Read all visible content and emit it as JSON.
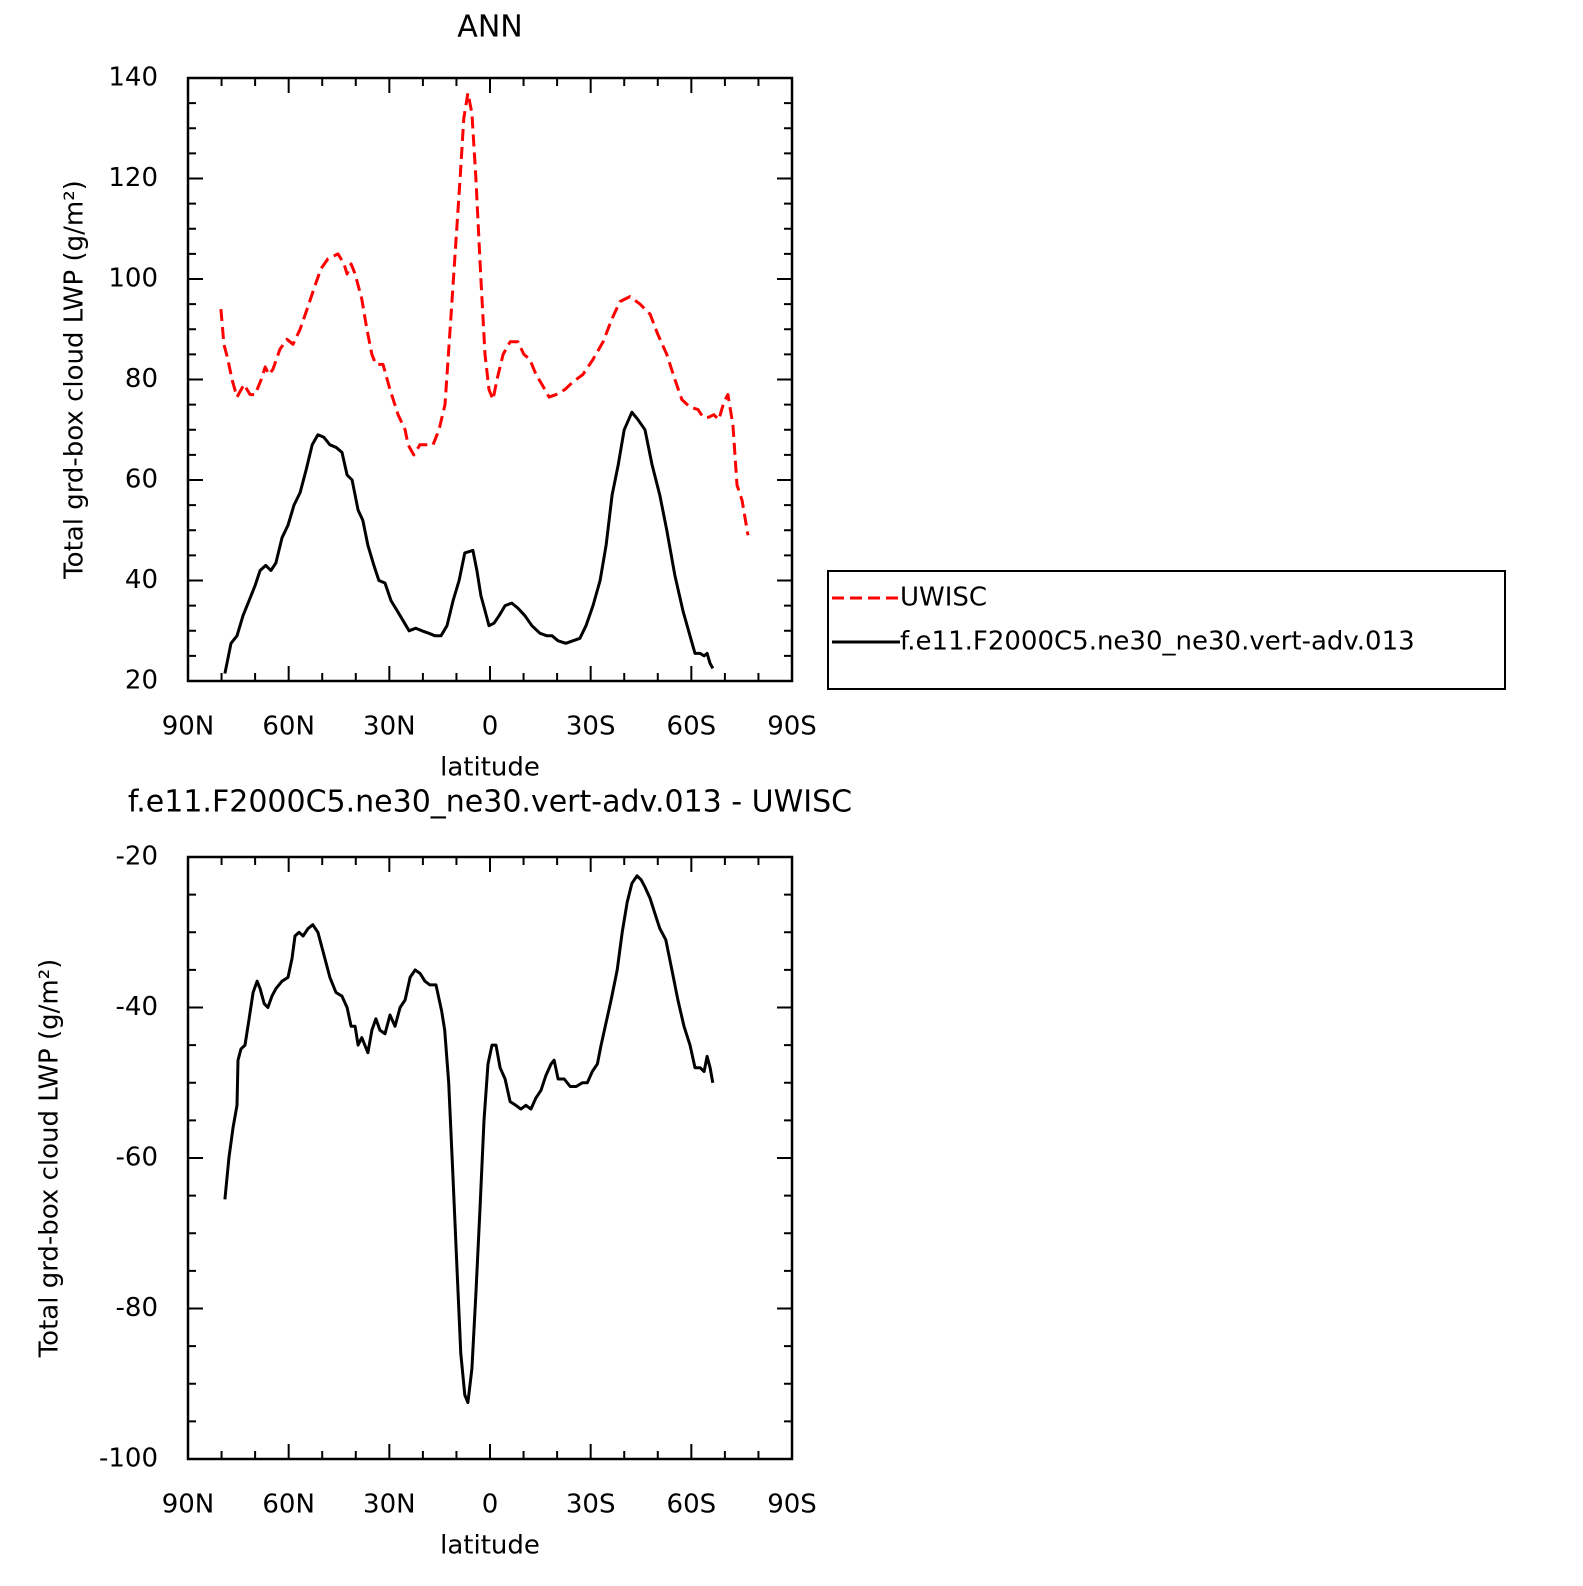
{
  "chart_data": [
    {
      "type": "line",
      "title": "ANN",
      "xlabel": "latitude",
      "ylabel": "Total grd-box cloud LWP (g/m²)",
      "xlim": [
        90,
        -90
      ],
      "xticks": [
        {
          "value": 90,
          "label": "90N"
        },
        {
          "value": 60,
          "label": "60N"
        },
        {
          "value": 30,
          "label": "30N"
        },
        0,
        {
          "value": -30,
          "label": "30S"
        },
        {
          "value": -60,
          "label": "60S"
        },
        {
          "value": -90,
          "label": "90S"
        }
      ],
      "xminorticks": [
        80,
        70,
        50,
        40,
        20,
        10,
        -10,
        -20,
        -40,
        -50,
        -70,
        -80
      ],
      "ylim": [
        20,
        140
      ],
      "yticks": [
        20,
        40,
        60,
        80,
        100,
        120,
        140
      ],
      "yminorticks": [
        25,
        30,
        35,
        45,
        50,
        55,
        65,
        70,
        75,
        85,
        90,
        95,
        105,
        110,
        115,
        125,
        130,
        135
      ],
      "legend": "right",
      "series": [
        {
          "name": "UWISC",
          "color": "#ff0000",
          "style": "dashed",
          "x": [
            80.2,
            79.3,
            78.1,
            76.9,
            75.4,
            73.3,
            71.5,
            70,
            68.2,
            67,
            65.9,
            64.7,
            62.6,
            60.5,
            58.7,
            56.6,
            54.5,
            52.5,
            50.4,
            48.3,
            45.3,
            43.5,
            42.6,
            41.4,
            40.2,
            38.2,
            36.7,
            35.2,
            34,
            31.9,
            29.8,
            27.4,
            25.3,
            24.4,
            22.7,
            20.9,
            18.8,
            17,
            15.2,
            13.4,
            11.9,
            10.4,
            8.9,
            7.8,
            6.6,
            5.4,
            4.2,
            2.7,
            1.5,
            0.3,
            -0.9,
            -2.1,
            -3.9,
            -6,
            -8.3,
            -10.1,
            -11.9,
            -13.7,
            -15.5,
            -17.6,
            -19.7,
            -22.3,
            -24.7,
            -27.7,
            -30.7,
            -33.7,
            -36.3,
            -38.7,
            -41.7,
            -44.7,
            -47.7,
            -50,
            -52.7,
            -55.1,
            -57.2,
            -59.6,
            -62,
            -63.5,
            -65.2,
            -66.7,
            -68.2,
            -69.7,
            -70.9,
            -72.4,
            -73.6,
            -75.1,
            -76.9
          ],
          "values": [
            94,
            87,
            84,
            80,
            76.5,
            79,
            77,
            77,
            80,
            82.5,
            81,
            82,
            86,
            88,
            87,
            90,
            94,
            98,
            102,
            104,
            105,
            103,
            101,
            103,
            101,
            96,
            90,
            85,
            83,
            83,
            78,
            73,
            70,
            67,
            65,
            67,
            67,
            67,
            70,
            75,
            90,
            105,
            120,
            132,
            137,
            133,
            120,
            100,
            85,
            78,
            76,
            80,
            85,
            87.5,
            87.5,
            85,
            84,
            81,
            79,
            76.5,
            77,
            78,
            79.5,
            81,
            84,
            87.5,
            92,
            95.5,
            96.5,
            95,
            93,
            89,
            85,
            80,
            76,
            74.5,
            74,
            72.5,
            72.5,
            73,
            72,
            75.5,
            77,
            71,
            59,
            56,
            49
          ]
        },
        {
          "name": "f.e11.F2000C5.ne30_ne30.vert-adv.013",
          "color": "#000000",
          "style": "solid",
          "x": [
            79,
            77.2,
            75.4,
            73.6,
            71.8,
            70,
            68.5,
            66.8,
            65.3,
            63.8,
            62,
            60.2,
            58.4,
            56.6,
            54.8,
            53,
            51.3,
            49.5,
            47.7,
            45.9,
            44.1,
            42.6,
            41.1,
            39.3,
            37.9,
            36.4,
            34.6,
            33.1,
            31.3,
            29.5,
            27.7,
            25.9,
            24.1,
            22.1,
            20.3,
            18.2,
            16.4,
            14.6,
            12.8,
            11,
            9.2,
            7.5,
            5.1,
            3.9,
            2.7,
            1.5,
            0.3,
            -1.2,
            -2.7,
            -4.5,
            -6.5,
            -8.3,
            -10.4,
            -12.5,
            -14.9,
            -17,
            -18.5,
            -20.3,
            -22.6,
            -24.7,
            -26.8,
            -28.6,
            -30.7,
            -32.8,
            -34.6,
            -36.4,
            -38.2,
            -40,
            -42.3,
            -44.1,
            -46.2,
            -48.3,
            -50.6,
            -52.7,
            -55.1,
            -57.5,
            -59.6,
            -61.1,
            -62.6,
            -63.8,
            -64.7,
            -65.6,
            -66.4
          ],
          "values": [
            21.5,
            27.5,
            29,
            33,
            36,
            39,
            42,
            43,
            42,
            43.5,
            48.5,
            51,
            55,
            57.5,
            62,
            67,
            69,
            68.5,
            67,
            66.5,
            65.5,
            61,
            60,
            54,
            52,
            47,
            43,
            40,
            39.5,
            36,
            34,
            32,
            30,
            30.5,
            30,
            29.5,
            29,
            29,
            31,
            36,
            40,
            45.5,
            46,
            42,
            37,
            34,
            31,
            31.5,
            33,
            35,
            35.5,
            34.5,
            33,
            31,
            29.5,
            29,
            29,
            28,
            27.5,
            28,
            28.5,
            31,
            35,
            40,
            47,
            57,
            63,
            70,
            73.5,
            72,
            70,
            63,
            57,
            50,
            41,
            34,
            29,
            25.5,
            25.5,
            25,
            25.5,
            23.5,
            22.5
          ]
        }
      ]
    },
    {
      "type": "line",
      "title": "f.e11.F2000C5.ne30_ne30.vert-adv.013 - UWISC",
      "xlabel": "latitude",
      "ylabel": "Total grd-box cloud LWP (g/m²)",
      "xlim": [
        90,
        -90
      ],
      "xticks": [
        {
          "value": 90,
          "label": "90N"
        },
        {
          "value": 60,
          "label": "60N"
        },
        {
          "value": 30,
          "label": "30N"
        },
        0,
        {
          "value": -30,
          "label": "30S"
        },
        {
          "value": -60,
          "label": "60S"
        },
        {
          "value": -90,
          "label": "90S"
        }
      ],
      "xminorticks": [
        80,
        70,
        50,
        40,
        20,
        10,
        -10,
        -20,
        -40,
        -50,
        -70,
        -80
      ],
      "ylim": [
        -100,
        -20
      ],
      "yticks": [
        -100,
        -80,
        -60,
        -40,
        -20
      ],
      "yminorticks": [
        -95,
        -90,
        -85,
        -75,
        -70,
        -65,
        -55,
        -50,
        -45,
        -35,
        -30,
        -25
      ],
      "color": "#000000",
      "x": [
        79,
        77.8,
        76.6,
        75.4,
        75.1,
        74.2,
        73,
        71.8,
        70.6,
        69.4,
        68.5,
        67.3,
        66.2,
        65,
        63.8,
        62,
        60.2,
        59,
        58.1,
        56.9,
        55.7,
        54.2,
        52.8,
        51.3,
        49.5,
        47.7,
        45.9,
        44.1,
        42.6,
        41.4,
        40.2,
        39.3,
        38.2,
        36.4,
        35.2,
        34,
        32.8,
        31.3,
        29.8,
        28.3,
        26.8,
        25.3,
        23.8,
        22.3,
        20.8,
        19.4,
        17.9,
        16.1,
        14.4,
        13.5,
        12.3,
        11.1,
        9.8,
        8.7,
        7.5,
        6.6,
        5.4,
        4.2,
        3,
        1.8,
        0.6,
        -0.6,
        -1.8,
        -3,
        -4.5,
        -6,
        -7.7,
        -9.2,
        -10.7,
        -12.2,
        -13.7,
        -15.2,
        -16.7,
        -18.2,
        -19.1,
        -20.3,
        -22.1,
        -23.9,
        -25.7,
        -27.5,
        -29,
        -30.5,
        -32,
        -33.1,
        -34.6,
        -36.1,
        -37.9,
        -39.4,
        -40.9,
        -42.3,
        -43.8,
        -45,
        -46.2,
        -47.7,
        -49.5,
        -50.6,
        -52.4,
        -54.2,
        -56,
        -57.8,
        -59.6,
        -61.1,
        -62.6,
        -63.8,
        -64.7,
        -65.6,
        -66.4
      ],
      "values": [
        -65.5,
        -60,
        -56,
        -53,
        -47,
        -45.5,
        -45,
        -41.5,
        -38,
        -36.5,
        -37.5,
        -39.5,
        -40,
        -38.5,
        -37.5,
        -36.5,
        -36,
        -33.5,
        -30.5,
        -30,
        -30.5,
        -29.5,
        -29,
        -30,
        -33,
        -36,
        -38,
        -38.5,
        -40,
        -42.5,
        -42.5,
        -45,
        -44,
        -46,
        -43,
        -41.5,
        -43,
        -43.5,
        -41,
        -42.5,
        -40,
        -39,
        -36,
        -35,
        -35.5,
        -36.5,
        -37,
        -37,
        -40.5,
        -43,
        -50,
        -62,
        -75,
        -86,
        -91.5,
        -92.5,
        -88,
        -78,
        -67,
        -55,
        -47.5,
        -45,
        -45,
        -48,
        -49.5,
        -52.5,
        -53,
        -53.5,
        -53,
        -53.5,
        -52,
        -51,
        -49,
        -47.5,
        -47,
        -49.5,
        -49.5,
        -50.5,
        -50.5,
        -50,
        -50,
        -48.5,
        -47.5,
        -45,
        -42,
        -39,
        -35,
        -30,
        -26,
        -23.5,
        -22.5,
        -23,
        -24,
        -25.5,
        -28,
        -29.5,
        -31,
        -35,
        -39,
        -42.5,
        -45,
        -48,
        -48,
        -48.5,
        -46.5,
        -48,
        -50
      ]
    }
  ]
}
